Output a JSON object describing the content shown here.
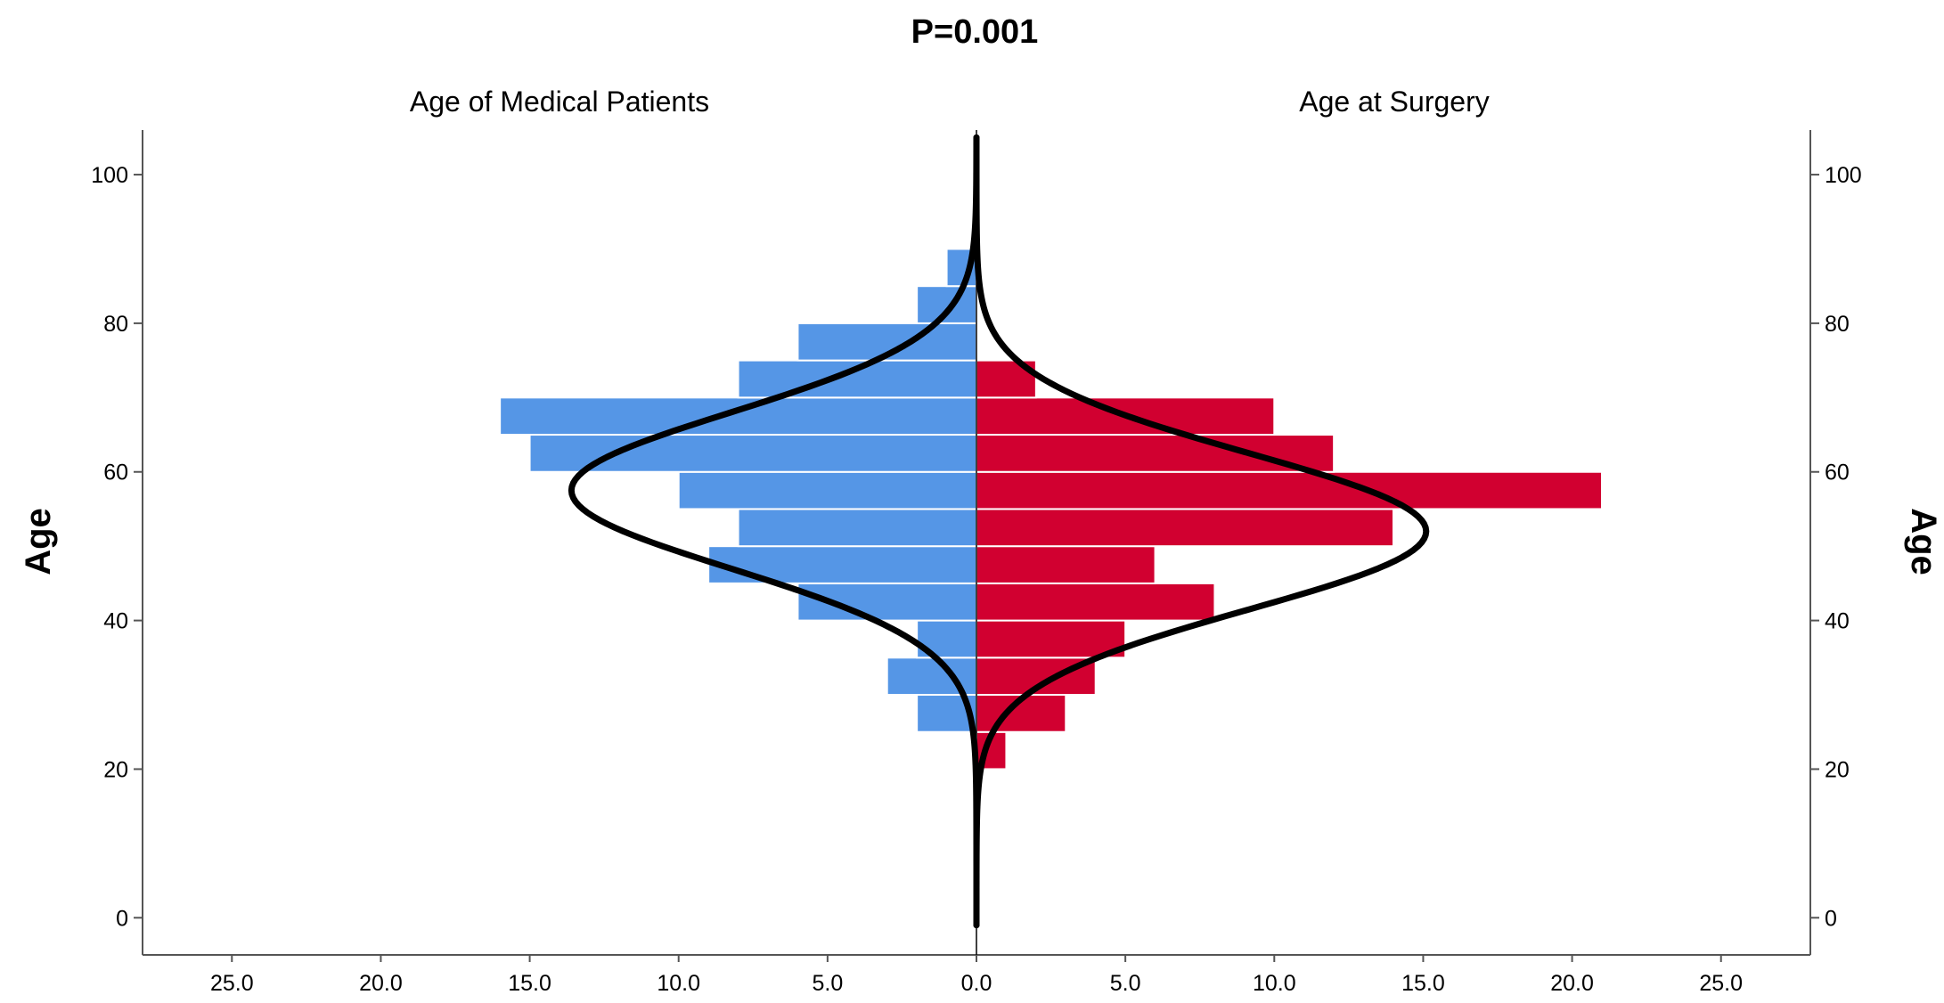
{
  "chart_data": {
    "type": "bar",
    "orientation": "horizontal-back-to-back",
    "title": "P=0.001",
    "bin_width": 5,
    "age_bins": [
      20,
      25,
      30,
      35,
      40,
      45,
      50,
      55,
      60,
      65,
      70,
      75,
      80,
      85
    ],
    "series": [
      {
        "name": "Age of Medical Patients",
        "side": "left",
        "color": "#5596E6",
        "values": [
          0,
          2,
          3,
          2,
          6,
          9,
          8,
          10,
          15,
          16,
          8,
          6,
          2,
          1
        ],
        "normal_curve": {
          "mean": 57.5,
          "sd": 10.5,
          "peak": 13.6
        }
      },
      {
        "name": "Age at Surgery",
        "side": "right",
        "color": "#D10030",
        "values": [
          1,
          3,
          4,
          5,
          8,
          6,
          14,
          21,
          12,
          10,
          2,
          0,
          0,
          0
        ],
        "normal_curve": {
          "mean": 52.0,
          "sd": 10.5,
          "peak": 15.1
        }
      }
    ],
    "x_axis": {
      "ticks": [
        25.0,
        20.0,
        15.0,
        10.0,
        5.0,
        0.0,
        5.0,
        10.0,
        15.0,
        20.0,
        25.0
      ],
      "tick_labels": [
        "25.0",
        "20.0",
        "15.0",
        "10.0",
        "5.0",
        "0.0",
        "5.0",
        "10.0",
        "15.0",
        "20.0",
        "25.0"
      ],
      "range": [
        -28,
        28
      ]
    },
    "y_axis": {
      "label_left": "Age",
      "label_right": "Age",
      "ticks": [
        0,
        20,
        40,
        60,
        80,
        100
      ],
      "tick_labels": [
        "0",
        "20",
        "40",
        "60",
        "80",
        "100"
      ],
      "range": [
        -5,
        106
      ]
    },
    "grid": false
  }
}
